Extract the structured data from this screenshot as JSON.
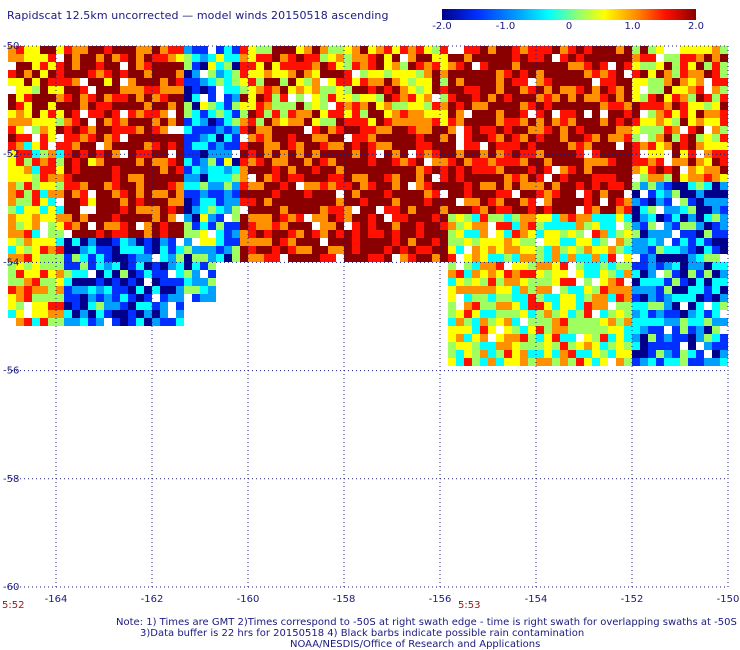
{
  "title": "Rapidscat 12.5km uncorrected — model winds 20150518 ascending",
  "colorbar": {
    "labels": [
      "-2.0",
      "-1.0",
      "0",
      "1.0",
      "2.0"
    ],
    "values": [
      -2.0,
      -1.0,
      0,
      1.0,
      2.0
    ],
    "colors": [
      "#0000a0",
      "#0050ff",
      "#00e0ff",
      "#80ff80",
      "#ffff00",
      "#ff8000",
      "#ff0000",
      "#800000"
    ]
  },
  "map": {
    "lon_range": [
      -165,
      -150
    ],
    "lat_range": [
      -60,
      -50
    ],
    "lon_ticks": [
      "-164",
      "-162",
      "-160",
      "-158",
      "-156",
      "-154",
      "-152",
      "-150"
    ],
    "lat_ticks": [
      "-50",
      "-52",
      "-54",
      "-56",
      "-58",
      "-60"
    ],
    "grid": "dotted",
    "swath_times": [
      "5:52",
      "5:53"
    ]
  },
  "notes": [
    "Note: 1) Times are GMT 2)Times correspond to -50S at right swath edge - time is right swath for overlapping swaths at -50S",
    "3)Data buffer is 22 hrs for 20150518 4) Black barbs indicate possible rain contamination",
    "NOAA/NESDIS/Office of Research and Applications"
  ]
}
